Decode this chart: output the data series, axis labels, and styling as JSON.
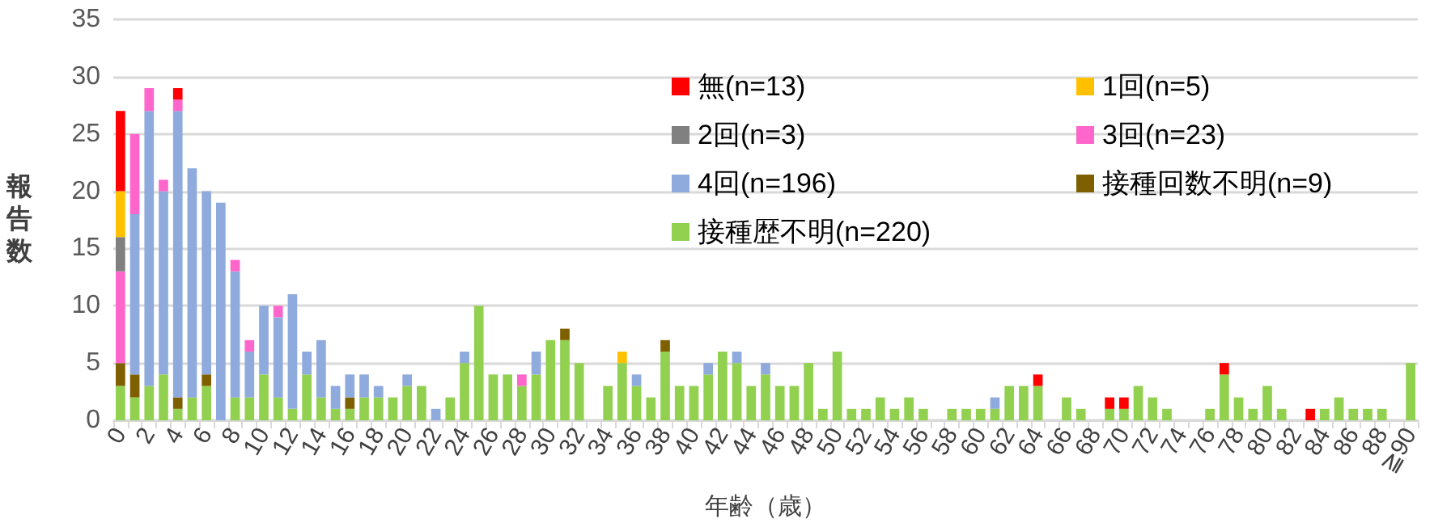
{
  "chart_data": {
    "type": "bar",
    "stacked": true,
    "xlabel": "年齢（歳）",
    "ylabel": "報告数",
    "ylim": [
      0,
      35
    ],
    "yticks": [
      0,
      5,
      10,
      15,
      20,
      25,
      30,
      35
    ],
    "grid": "y",
    "legend": "top right",
    "categories": [
      "0",
      null,
      "2",
      null,
      "4",
      null,
      "6",
      null,
      "8",
      null,
      "10",
      null,
      "12",
      null,
      "14",
      null,
      "16",
      null,
      "18",
      null,
      "20",
      null,
      "22",
      null,
      "24",
      null,
      "26",
      null,
      "28",
      null,
      "30",
      null,
      "32",
      null,
      "34",
      null,
      "36",
      null,
      "38",
      null,
      "40",
      null,
      "42",
      null,
      "44",
      null,
      "46",
      null,
      "48",
      null,
      "50",
      null,
      "52",
      null,
      "54",
      null,
      "56",
      null,
      "58",
      null,
      "60",
      null,
      "62",
      null,
      "64",
      null,
      "66",
      null,
      "68",
      null,
      "70",
      null,
      "72",
      null,
      "74",
      null,
      "76",
      null,
      "78",
      null,
      "80",
      null,
      "82",
      null,
      "84",
      null,
      "86",
      null,
      "88",
      null,
      "≧90"
    ],
    "series": [
      {
        "name": "接種歴不明(n=220)",
        "color": "#92d050",
        "values": [
          3,
          2,
          3,
          4,
          1,
          2,
          3,
          null,
          2,
          2,
          4,
          2,
          1,
          4,
          2,
          1,
          1,
          2,
          2,
          2,
          3,
          3,
          null,
          2,
          5,
          10,
          4,
          4,
          3,
          4,
          7,
          7,
          5,
          null,
          3,
          5,
          3,
          2,
          6,
          3,
          3,
          4,
          6,
          5,
          3,
          4,
          3,
          3,
          5,
          1,
          6,
          1,
          1,
          2,
          1,
          2,
          1,
          null,
          1,
          1,
          1,
          1,
          3,
          3,
          3,
          null,
          2,
          1,
          null,
          1,
          1,
          3,
          2,
          1,
          null,
          null,
          1,
          4,
          2,
          1,
          3,
          1,
          null,
          null,
          1,
          2,
          1,
          1,
          1,
          null,
          5
        ]
      },
      {
        "name": "接種回数不明(n=9)",
        "color": "#7f6000",
        "values": [
          2,
          2,
          null,
          null,
          1,
          null,
          1,
          null,
          null,
          null,
          null,
          null,
          null,
          null,
          null,
          null,
          1,
          null,
          null,
          null,
          null,
          null,
          null,
          null,
          null,
          null,
          null,
          null,
          null,
          null,
          null,
          1,
          null,
          null,
          null,
          null,
          null,
          null,
          1,
          null,
          null,
          null,
          null,
          null,
          null,
          null,
          null,
          null,
          null,
          null,
          null,
          null,
          null,
          null,
          null,
          null,
          null,
          null,
          null,
          null,
          null,
          null,
          null,
          null,
          null,
          null,
          null,
          null,
          null,
          null,
          null,
          null,
          null,
          null,
          null,
          null,
          null,
          null,
          null,
          null,
          null,
          null,
          null,
          null,
          null,
          null,
          null,
          null,
          null,
          null,
          null
        ]
      },
      {
        "name": "4回(n=196)",
        "color": "#8faadc",
        "values": [
          null,
          14,
          24,
          16,
          25,
          20,
          16,
          19,
          11,
          4,
          6,
          7,
          10,
          2,
          5,
          2,
          2,
          2,
          1,
          null,
          1,
          null,
          1,
          null,
          1,
          null,
          null,
          null,
          null,
          2,
          null,
          null,
          null,
          null,
          null,
          null,
          1,
          null,
          null,
          null,
          null,
          1,
          null,
          1,
          null,
          1,
          null,
          null,
          null,
          null,
          null,
          null,
          null,
          null,
          null,
          null,
          null,
          null,
          null,
          null,
          null,
          1,
          null,
          null,
          null,
          null,
          null,
          null,
          null,
          null,
          null,
          null,
          null,
          null,
          null,
          null,
          null,
          null,
          null,
          null,
          null,
          null,
          null,
          null,
          null,
          null,
          null,
          null,
          null,
          null,
          null
        ]
      },
      {
        "name": "3回(n=23)",
        "color": "#ff66cc",
        "values": [
          8,
          7,
          2,
          1,
          1,
          null,
          null,
          null,
          1,
          1,
          null,
          1,
          null,
          null,
          null,
          null,
          null,
          null,
          null,
          null,
          null,
          null,
          null,
          null,
          null,
          null,
          null,
          null,
          1,
          null,
          null,
          null,
          null,
          null,
          null,
          null,
          null,
          null,
          null,
          null,
          null,
          null,
          null,
          null,
          null,
          null,
          null,
          null,
          null,
          null,
          null,
          null,
          null,
          null,
          null,
          null,
          null,
          null,
          null,
          null,
          null,
          null,
          null,
          null,
          null,
          null,
          null,
          null,
          null,
          null,
          null,
          null,
          null,
          null,
          null,
          null,
          null,
          null,
          null,
          null,
          null,
          null,
          null,
          null,
          null,
          null,
          null,
          null,
          null,
          null,
          null
        ]
      },
      {
        "name": "2回(n=3)",
        "color": "#808080",
        "values": [
          3,
          null,
          null,
          null,
          null,
          null,
          null,
          null,
          null,
          null,
          null,
          null,
          null,
          null,
          null,
          null,
          null,
          null,
          null,
          null,
          null,
          null,
          null,
          null,
          null,
          null,
          null,
          null,
          null,
          null,
          null,
          null,
          null,
          null,
          null,
          null,
          null,
          null,
          null,
          null,
          null,
          null,
          null,
          null,
          null,
          null,
          null,
          null,
          null,
          null,
          null,
          null,
          null,
          null,
          null,
          null,
          null,
          null,
          null,
          null,
          null,
          null,
          null,
          null,
          null,
          null,
          null,
          null,
          null,
          null,
          null,
          null,
          null,
          null,
          null,
          null,
          null,
          null,
          null,
          null,
          null,
          null,
          null,
          null,
          null,
          null,
          null,
          null,
          null,
          null,
          null
        ]
      },
      {
        "name": "1回(n=5)",
        "color": "#ffc000",
        "values": [
          4,
          null,
          null,
          null,
          null,
          null,
          null,
          null,
          null,
          null,
          null,
          null,
          null,
          null,
          null,
          null,
          null,
          null,
          null,
          null,
          null,
          null,
          null,
          null,
          null,
          null,
          null,
          null,
          null,
          null,
          null,
          null,
          null,
          null,
          null,
          1,
          null,
          null,
          null,
          null,
          null,
          null,
          null,
          null,
          null,
          null,
          null,
          null,
          null,
          null,
          null,
          null,
          null,
          null,
          null,
          null,
          null,
          null,
          null,
          null,
          null,
          null,
          null,
          null,
          null,
          null,
          null,
          null,
          null,
          null,
          null,
          null,
          null,
          null,
          null,
          null,
          null,
          null,
          null,
          null,
          null,
          null,
          null,
          null,
          null,
          null,
          null,
          null,
          null,
          null,
          null
        ]
      },
      {
        "name": "無(n=13)",
        "color": "#ff0000",
        "values": [
          7,
          null,
          null,
          null,
          1,
          null,
          null,
          null,
          null,
          null,
          null,
          null,
          null,
          null,
          null,
          null,
          null,
          null,
          null,
          null,
          null,
          null,
          null,
          null,
          null,
          null,
          null,
          null,
          null,
          null,
          null,
          null,
          null,
          null,
          null,
          null,
          null,
          null,
          null,
          null,
          null,
          null,
          null,
          null,
          null,
          null,
          null,
          null,
          null,
          null,
          null,
          null,
          null,
          null,
          null,
          null,
          null,
          null,
          null,
          null,
          null,
          null,
          null,
          null,
          1,
          null,
          null,
          null,
          null,
          1,
          1,
          null,
          null,
          null,
          null,
          null,
          null,
          1,
          null,
          null,
          null,
          null,
          null,
          1,
          null,
          null,
          null,
          null,
          null,
          null,
          null
        ]
      }
    ]
  }
}
